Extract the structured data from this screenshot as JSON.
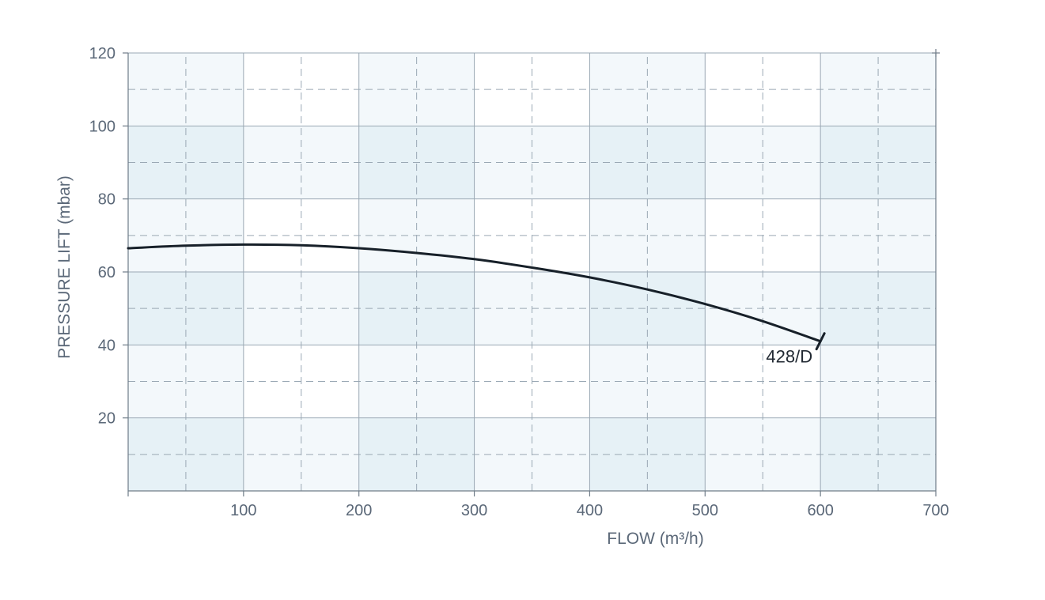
{
  "chart_data": {
    "type": "line",
    "xlabel": "FLOW (m³/h)",
    "ylabel": "PRESSURE LIFT (mbar)",
    "xlim": [
      0,
      700
    ],
    "ylim": [
      0,
      120
    ],
    "x_ticks": [
      100,
      200,
      300,
      400,
      500,
      600,
      700
    ],
    "y_ticks": [
      20,
      40,
      60,
      80,
      100,
      120
    ],
    "grid": true,
    "series": [
      {
        "name": "428/D",
        "x": [
          0,
          50,
          100,
          150,
          200,
          250,
          300,
          350,
          400,
          450,
          500,
          550,
          600
        ],
        "y": [
          66.5,
          67.2,
          67.5,
          67.3,
          66.5,
          65.2,
          63.5,
          61.2,
          58.5,
          55.2,
          51.2,
          46.5,
          41.0
        ]
      }
    ],
    "colors": {
      "curve": "#172029",
      "panel_light": "#f3f8fb",
      "panel_dark": "#e6f1f6",
      "panel_white": "#ffffff"
    }
  }
}
